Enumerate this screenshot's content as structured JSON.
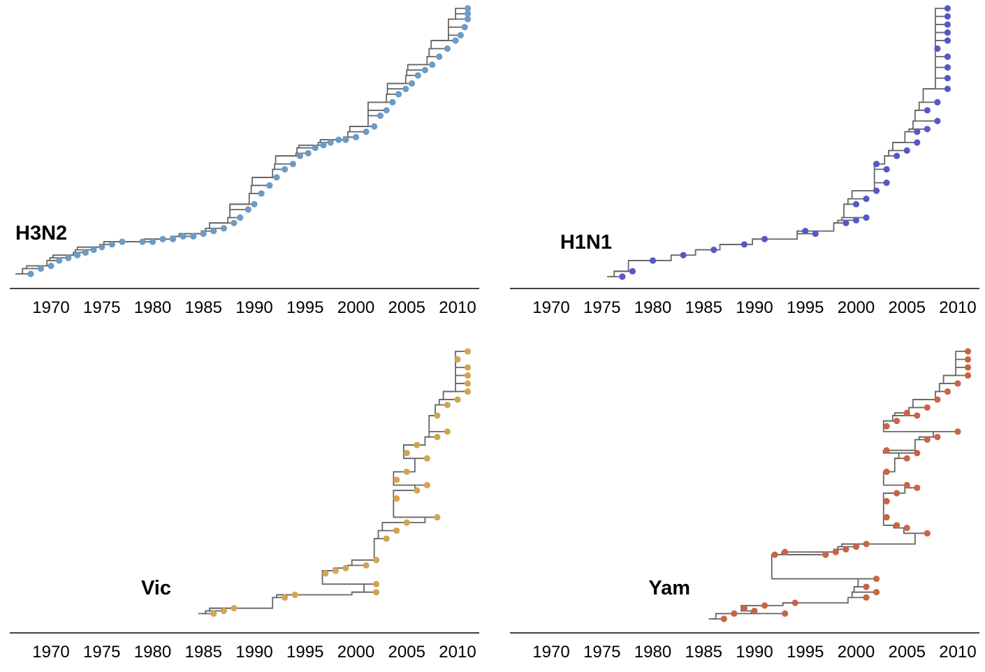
{
  "chart_data": [
    {
      "type": "scatter",
      "subtype": "time-scaled-phylogenetic-tree",
      "label": "H3N2",
      "color": "#6b9bc6",
      "xlim": [
        1966,
        2013
      ],
      "xticks": [
        1970,
        1975,
        1980,
        1985,
        1990,
        1995,
        2000,
        2005,
        2010
      ],
      "grid": false,
      "tips": {
        "x": [
          1968.0,
          1969.0,
          1970.0,
          1970.8,
          1971.7,
          1972.6,
          1973.4,
          1974.2,
          1975.0,
          1976.0,
          1977.0,
          1979.0,
          1980.0,
          1981.0,
          1982.0,
          1983.0,
          1984.0,
          1985.0,
          1986.0,
          1987.0,
          1988.0,
          1988.6,
          1989.4,
          1990.0,
          1990.7,
          1991.5,
          1992.2,
          1993.0,
          1993.8,
          1994.5,
          1995.3,
          1996.0,
          1996.8,
          1997.5,
          1998.3,
          1999.0,
          2000.0,
          2001.0,
          2001.8,
          2002.4,
          2003.0,
          2003.6,
          2004.2,
          2004.9,
          2005.5,
          2006.1,
          2006.8,
          2007.5,
          2008.2,
          2009.0,
          2009.8,
          2010.3,
          2010.7,
          2011.0,
          2011.0,
          2011.0
        ],
        "y": [
          0.01,
          0.03,
          0.04,
          0.06,
          0.07,
          0.08,
          0.09,
          0.1,
          0.11,
          0.12,
          0.13,
          0.13,
          0.13,
          0.14,
          0.14,
          0.15,
          0.15,
          0.16,
          0.17,
          0.18,
          0.2,
          0.22,
          0.25,
          0.27,
          0.31,
          0.34,
          0.37,
          0.4,
          0.42,
          0.45,
          0.46,
          0.48,
          0.49,
          0.5,
          0.51,
          0.51,
          0.52,
          0.54,
          0.56,
          0.6,
          0.62,
          0.65,
          0.68,
          0.7,
          0.72,
          0.75,
          0.77,
          0.79,
          0.82,
          0.85,
          0.88,
          0.9,
          0.93,
          0.96,
          0.98,
          1.0
        ]
      }
    },
    {
      "type": "scatter",
      "subtype": "time-scaled-phylogenetic-tree",
      "label": "H1N1",
      "color": "#5658c9",
      "xlim": [
        1966,
        2013
      ],
      "xticks": [
        1970,
        1975,
        1980,
        1985,
        1990,
        1995,
        2000,
        2005,
        2010
      ],
      "grid": false,
      "tips": {
        "x": [
          1977.0,
          1978.0,
          1980.0,
          1983.0,
          1986.0,
          1989.0,
          1991.0,
          1995.0,
          1996.0,
          1999.0,
          2000.0,
          2001.0,
          2000.0,
          2001.0,
          2002.0,
          2003.0,
          2003.0,
          2002.0,
          2004.0,
          2005.0,
          2006.0,
          2007.0,
          2008.0,
          2006.0,
          2007.0,
          2008.0,
          2009.0,
          2009.0,
          2009.0,
          2009.0,
          2008.0,
          2009.0,
          2009.0,
          2009.0,
          2009.0,
          2009.0
        ],
        "y": [
          0.0,
          0.02,
          0.06,
          0.08,
          0.1,
          0.12,
          0.14,
          0.17,
          0.16,
          0.2,
          0.21,
          0.22,
          0.27,
          0.29,
          0.32,
          0.35,
          0.4,
          0.42,
          0.45,
          0.47,
          0.5,
          0.55,
          0.58,
          0.54,
          0.62,
          0.65,
          0.7,
          0.74,
          0.78,
          0.82,
          0.85,
          0.88,
          0.91,
          0.94,
          0.97,
          1.0
        ]
      }
    },
    {
      "type": "scatter",
      "subtype": "time-scaled-phylogenetic-tree",
      "label": "Vic",
      "color": "#d3a552",
      "xlim": [
        1966,
        2013
      ],
      "xticks": [
        1970,
        1975,
        1980,
        1985,
        1990,
        1995,
        2000,
        2005,
        2010
      ],
      "grid": false,
      "tips": {
        "x": [
          1986.0,
          1987.0,
          1988.0,
          1993.0,
          1994.0,
          1997.0,
          1998.0,
          1999.0,
          2001.0,
          2002.0,
          2002.0,
          2002.0,
          2003.0,
          2004.0,
          2005.0,
          2004.0,
          2006.0,
          2007.0,
          2008.0,
          2004.0,
          2005.0,
          2005.0,
          2006.0,
          2007.0,
          2008.0,
          2009.0,
          2008.0,
          2009.0,
          2010.0,
          2011.0,
          2011.0,
          2011.0,
          2011.0,
          2010.0,
          2011.0
        ],
        "y": [
          0.02,
          0.03,
          0.04,
          0.08,
          0.09,
          0.17,
          0.18,
          0.19,
          0.2,
          0.1,
          0.13,
          0.22,
          0.3,
          0.33,
          0.36,
          0.45,
          0.48,
          0.5,
          0.38,
          0.52,
          0.55,
          0.62,
          0.65,
          0.6,
          0.68,
          0.7,
          0.76,
          0.8,
          0.82,
          0.85,
          0.88,
          0.91,
          0.94,
          0.97,
          1.0
        ]
      }
    },
    {
      "type": "scatter",
      "subtype": "time-scaled-phylogenetic-tree",
      "label": "Yam",
      "color": "#c96447",
      "xlim": [
        1966,
        2013
      ],
      "xticks": [
        1970,
        1975,
        1980,
        1985,
        1990,
        1995,
        2000,
        2005,
        2010
      ],
      "grid": false,
      "tips": {
        "x": [
          1987.0,
          1988.0,
          1989.0,
          1990.0,
          1991.0,
          1993.0,
          1994.0,
          1992.0,
          1993.0,
          1997.0,
          1998.0,
          1999.0,
          2000.0,
          2001.0,
          2001.0,
          2002.0,
          2001.0,
          2002.0,
          2003.0,
          2004.0,
          2005.0,
          2007.0,
          2003.0,
          2004.0,
          2005.0,
          2006.0,
          2003.0,
          2003.0,
          2005.0,
          2006.0,
          2007.0,
          2008.0,
          2003.0,
          2004.0,
          2005.0,
          2006.0,
          2007.0,
          2008.0,
          2009.0,
          2010.0,
          2011.0,
          2011.0,
          2011.0,
          2010.0,
          2011.0
        ],
        "y": [
          0.0,
          0.02,
          0.04,
          0.03,
          0.05,
          0.02,
          0.06,
          0.24,
          0.25,
          0.24,
          0.25,
          0.26,
          0.27,
          0.28,
          0.08,
          0.1,
          0.12,
          0.15,
          0.38,
          0.35,
          0.34,
          0.32,
          0.44,
          0.47,
          0.5,
          0.49,
          0.55,
          0.63,
          0.6,
          0.62,
          0.67,
          0.68,
          0.72,
          0.74,
          0.77,
          0.76,
          0.79,
          0.82,
          0.85,
          0.88,
          0.91,
          0.94,
          0.97,
          0.7,
          1.0
        ]
      }
    }
  ]
}
